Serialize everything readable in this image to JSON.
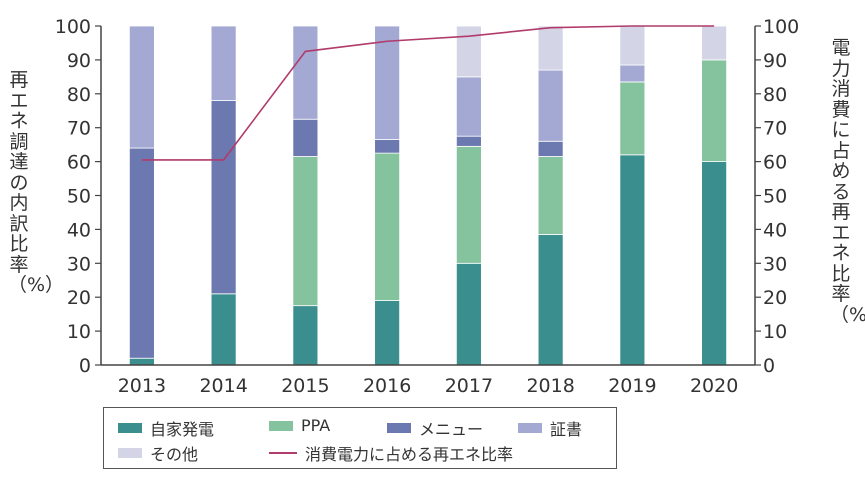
{
  "chart_data": {
    "type": "bar",
    "stacked": true,
    "categories": [
      "2013",
      "2014",
      "2015",
      "2016",
      "2017",
      "2018",
      "2019",
      "2020"
    ],
    "series": [
      {
        "name": "自家発電",
        "color": "#3a8e8d",
        "values": [
          2,
          21,
          17.5,
          19,
          30,
          38.5,
          62,
          60
        ]
      },
      {
        "name": "PPA",
        "color": "#85c29e",
        "values": [
          0,
          0,
          44,
          43.5,
          34.5,
          23,
          21.5,
          30
        ]
      },
      {
        "name": "メニュー",
        "color": "#6c78b0",
        "values": [
          62,
          57,
          11,
          4,
          3,
          4.5,
          0,
          0
        ]
      },
      {
        "name": "証書",
        "color": "#a3a9d2",
        "values": [
          36,
          22,
          27.5,
          33.5,
          17.5,
          21,
          5,
          0
        ]
      },
      {
        "name": "その他",
        "color": "#d3d4e6",
        "values": [
          0,
          0,
          0,
          0,
          15,
          13,
          11.5,
          10
        ]
      }
    ],
    "line": {
      "name": "消費電力に占める再エネ比率",
      "color": "#b13b6a",
      "values": [
        60.5,
        60.5,
        92.5,
        95.5,
        97,
        99.5,
        100,
        100
      ]
    },
    "ylabel_left": "再エネ調達の内訳比率（%）",
    "ylabel_right": "電力消費に占める再エネ比率（%）",
    "ylim": [
      0,
      100
    ],
    "yticks": [
      0,
      10,
      20,
      30,
      40,
      50,
      60,
      70,
      80,
      90,
      100
    ],
    "legend_position": "bottom"
  },
  "legend": {
    "self_gen": "自家発電",
    "ppa": "PPA",
    "menu": "メニュー",
    "certificate": "証書",
    "other": "その他",
    "line": "消費電力に占める再エネ比率"
  },
  "colors": {
    "self_gen": "#3a8e8d",
    "ppa": "#85c29e",
    "menu": "#6c78b0",
    "certificate": "#a3a9d2",
    "other": "#d3d4e6",
    "line": "#b13b6a"
  }
}
